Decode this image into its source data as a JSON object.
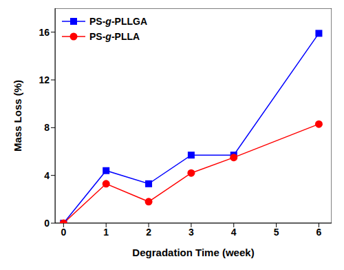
{
  "chart_data": {
    "type": "line",
    "x_label": "Degradation Time (week)",
    "y_label": "Mass Loss (%)",
    "x": [
      0,
      1,
      2,
      3,
      4,
      6
    ],
    "xlim": [
      -0.2,
      6.3
    ],
    "xticks": [
      0,
      1,
      2,
      3,
      4,
      5,
      6
    ],
    "ylim": [
      0,
      18
    ],
    "yticks": [
      0,
      4,
      8,
      12,
      16
    ],
    "grid": false,
    "legend": "upper left",
    "series": [
      {
        "name": "PS-g-PLLGA",
        "color": "#0000ff",
        "marker": "square",
        "values": [
          0,
          4.4,
          3.3,
          5.7,
          5.7,
          15.9
        ]
      },
      {
        "name": "PS-g-PLLA",
        "color": "#ff0000",
        "marker": "circle",
        "values": [
          0,
          3.3,
          1.8,
          4.2,
          5.5,
          8.3
        ]
      }
    ]
  }
}
